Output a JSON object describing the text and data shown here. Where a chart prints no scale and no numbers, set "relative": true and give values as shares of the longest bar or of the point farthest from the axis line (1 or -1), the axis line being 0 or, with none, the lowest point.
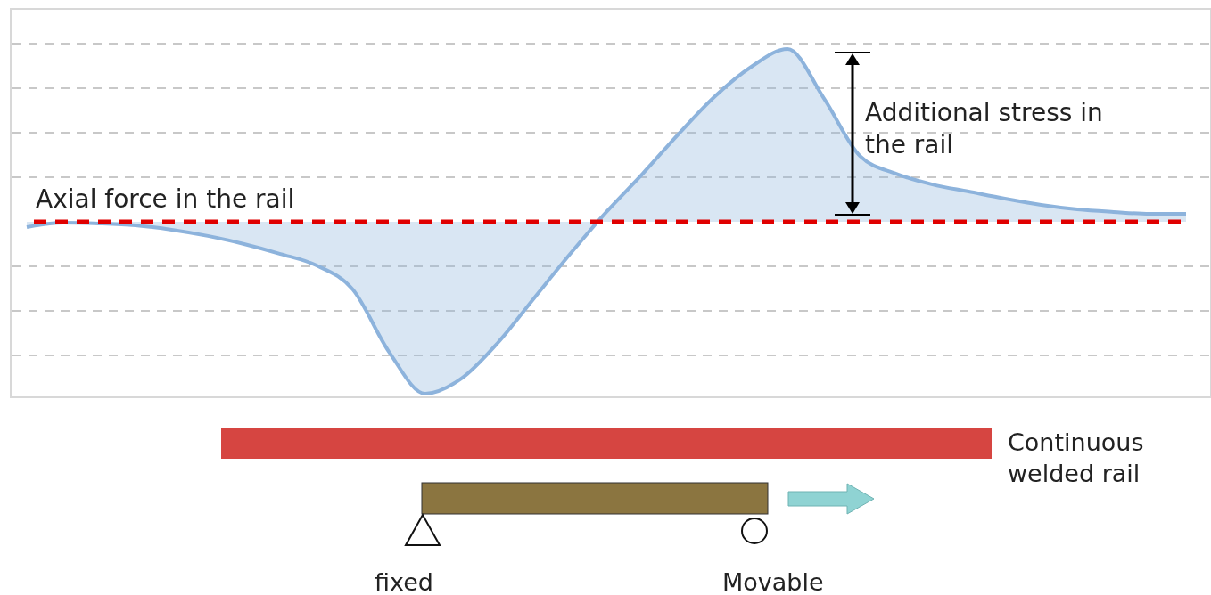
{
  "chart_data": {
    "type": "area",
    "relative": true,
    "grid": "y",
    "line_style": "solid",
    "categories": [
      null,
      null,
      null,
      null,
      null,
      null,
      null,
      null,
      null,
      null,
      null,
      null,
      null,
      null,
      null,
      null,
      null,
      null,
      null,
      null,
      null,
      null,
      null,
      null,
      null,
      null,
      null,
      null,
      null,
      null,
      null,
      null,
      null
    ],
    "series": [
      {
        "color": "#8db3dc",
        "values": [
          -0.031,
          -0.005,
          -0.01,
          -0.021,
          -0.046,
          -0.082,
          -0.129,
          -0.186,
          -0.253,
          -0.392,
          -0.753,
          -0.995,
          -0.907,
          -0.701,
          -0.443,
          -0.186,
          0.057,
          0.278,
          0.51,
          0.727,
          0.897,
          1,
          0.716,
          0.381,
          0.278,
          0.216,
          0.175,
          0.134,
          0.098,
          0.072,
          0.057,
          0.046,
          0.046
        ]
      }
    ],
    "ref_lines": [
      {
        "axis": "y",
        "value": 0,
        "label": "Axial force in the rail",
        "color": "#e00000",
        "line_style": "dashed"
      }
    ],
    "annotations": [
      "Additional stress in the rail",
      "Continuous welded rail",
      "fixed",
      "Movable"
    ]
  }
}
